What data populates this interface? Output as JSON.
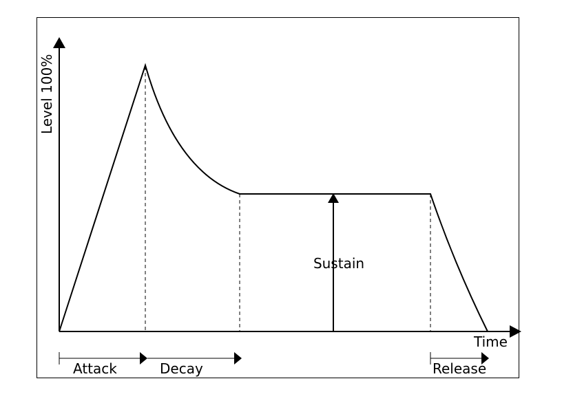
{
  "axes": {
    "y_label": "Level 100%",
    "x_label": "Time"
  },
  "stages": {
    "attack": "Attack",
    "decay": "Decay",
    "sustain": "Sustain",
    "release": "Release"
  },
  "colors": {
    "line": "#000000",
    "background": "#ffffff"
  }
}
